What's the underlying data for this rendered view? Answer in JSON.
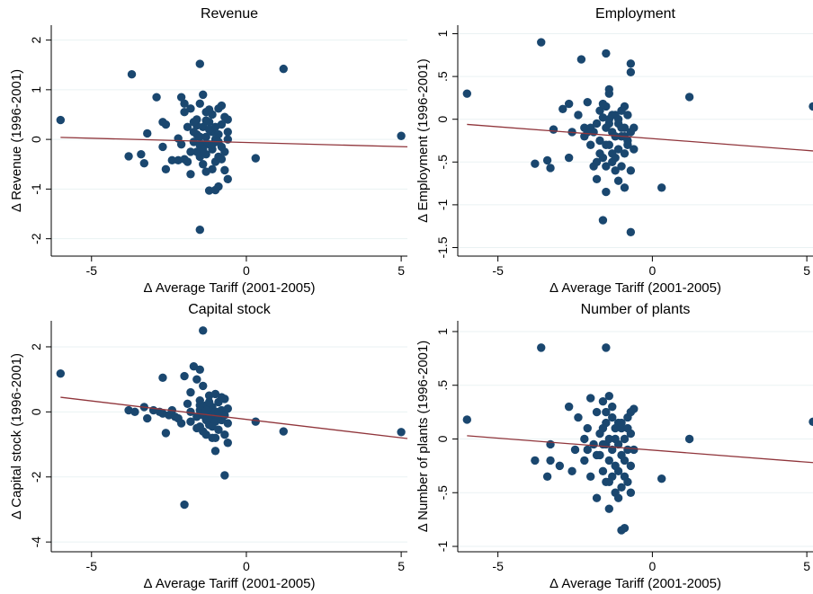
{
  "figure": {
    "marker_color": "#1a476f",
    "fit_color": "#90353b",
    "grid_color": "#eaf2f3",
    "axis_color": "#000000"
  },
  "chart_data": [
    {
      "type": "scatter",
      "title": "Revenue",
      "xlabel": "Δ Average Tariff (2001-2005)",
      "ylabel": "Δ Revenue (1996-2001)",
      "xlim": [
        -6.3,
        5.2
      ],
      "ylim": [
        -2.35,
        2.3
      ],
      "xticks": [
        -5,
        0,
        5
      ],
      "yticks": [
        -2,
        -1,
        0,
        1,
        2
      ],
      "xtick_labels": [
        "-5",
        "0",
        "5"
      ],
      "ytick_labels": [
        "-2",
        "-1",
        "0",
        "1",
        "2"
      ],
      "grid": true,
      "fit_line": {
        "x": [
          -6.0,
          5.2
        ],
        "y": [
          0.04,
          -0.15
        ]
      },
      "points": [
        [
          -6.0,
          0.39
        ],
        [
          -3.7,
          1.31
        ],
        [
          -3.2,
          0.12
        ],
        [
          -3.4,
          -0.3
        ],
        [
          -3.3,
          -0.48
        ],
        [
          -3.8,
          -0.34
        ],
        [
          -2.9,
          0.85
        ],
        [
          -2.7,
          0.35
        ],
        [
          -2.6,
          0.3
        ],
        [
          -2.7,
          -0.15
        ],
        [
          -2.6,
          -0.6
        ],
        [
          -2.4,
          -0.42
        ],
        [
          -2.2,
          -0.42
        ],
        [
          -2.1,
          0.85
        ],
        [
          -2.2,
          0.02
        ],
        [
          -2.0,
          0.72
        ],
        [
          -2.0,
          0.55
        ],
        [
          -1.9,
          0.25
        ],
        [
          -2.1,
          -0.1
        ],
        [
          -2.0,
          -0.4
        ],
        [
          -1.8,
          0.62
        ],
        [
          -1.7,
          0.15
        ],
        [
          -1.7,
          -0.05
        ],
        [
          -1.8,
          -0.7
        ],
        [
          -1.6,
          0.4
        ],
        [
          -1.6,
          0.1
        ],
        [
          -1.6,
          -0.25
        ],
        [
          -1.5,
          1.52
        ],
        [
          -1.5,
          0.72
        ],
        [
          -1.5,
          0.05
        ],
        [
          -1.5,
          -0.35
        ],
        [
          -1.4,
          0.9
        ],
        [
          -1.4,
          0.25
        ],
        [
          -1.4,
          -0.1
        ],
        [
          -1.4,
          -0.5
        ],
        [
          -1.3,
          0.55
        ],
        [
          -1.3,
          0.05
        ],
        [
          -1.3,
          -0.3
        ],
        [
          -1.2,
          0.35
        ],
        [
          -1.2,
          -0.1
        ],
        [
          -1.2,
          -1.03
        ],
        [
          -1.1,
          0.5
        ],
        [
          -1.1,
          0.15
        ],
        [
          -1.1,
          -0.2
        ],
        [
          -1.1,
          -0.6
        ],
        [
          -1.0,
          0.25
        ],
        [
          -1.0,
          -0.05
        ],
        [
          -1.0,
          -0.45
        ],
        [
          -1.0,
          -1.02
        ],
        [
          -0.9,
          0.62
        ],
        [
          -0.9,
          0.1
        ],
        [
          -0.9,
          -0.35
        ],
        [
          -0.9,
          -0.95
        ],
        [
          -0.8,
          0.68
        ],
        [
          -0.8,
          0.3
        ],
        [
          -0.8,
          -0.15
        ],
        [
          -0.7,
          0.45
        ],
        [
          -0.7,
          -0.25
        ],
        [
          -0.7,
          -0.62
        ],
        [
          -0.6,
          0.4
        ],
        [
          -0.6,
          0.15
        ],
        [
          -0.6,
          0.0
        ],
        [
          -0.6,
          -0.8
        ],
        [
          -1.2,
          0.6
        ],
        [
          -1.3,
          0.38
        ],
        [
          -1.6,
          0.28
        ],
        [
          -1.5,
          -0.12
        ],
        [
          -1.7,
          0.35
        ],
        [
          -1.8,
          -0.25
        ],
        [
          -1.9,
          -0.45
        ],
        [
          -1.3,
          -0.65
        ],
        [
          -1.1,
          -0.1
        ],
        [
          -0.8,
          -0.4
        ],
        [
          -1.5,
          -1.82
        ],
        [
          0.3,
          -0.38
        ],
        [
          1.2,
          1.42
        ],
        [
          5.0,
          0.07
        ],
        [
          -1.4,
          -0.2
        ],
        [
          -1.0,
          0.0
        ],
        [
          -1.2,
          0.2
        ],
        [
          -0.9,
          -0.05
        ]
      ]
    },
    {
      "type": "scatter",
      "title": "Employment",
      "xlabel": "Δ Average Tariff (2001-2005)",
      "ylabel": "Δ Employment (1996-2001)",
      "xlim": [
        -6.3,
        5.2
      ],
      "ylim": [
        -1.6,
        1.1
      ],
      "xticks": [
        -5,
        0,
        5
      ],
      "yticks": [
        -1.5,
        -1,
        -0.5,
        0,
        0.5,
        1
      ],
      "xtick_labels": [
        "-5",
        "0",
        "5"
      ],
      "ytick_labels": [
        "-1.5",
        "-1",
        "-.5",
        "0",
        ".5",
        "1"
      ],
      "grid": true,
      "fit_line": {
        "x": [
          -6.0,
          5.2
        ],
        "y": [
          -0.06,
          -0.37
        ]
      },
      "points": [
        [
          -6.0,
          0.3
        ],
        [
          -3.6,
          0.9
        ],
        [
          -3.8,
          -0.52
        ],
        [
          -3.4,
          -0.48
        ],
        [
          -3.3,
          -0.57
        ],
        [
          -3.2,
          -0.12
        ],
        [
          -2.9,
          0.12
        ],
        [
          -2.7,
          0.18
        ],
        [
          -2.6,
          -0.15
        ],
        [
          -2.7,
          -0.45
        ],
        [
          -2.4,
          0.05
        ],
        [
          -2.3,
          0.7
        ],
        [
          -2.2,
          -0.2
        ],
        [
          -2.1,
          0.2
        ],
        [
          -2.0,
          -0.1
        ],
        [
          -2.0,
          -0.3
        ],
        [
          -1.9,
          -0.15
        ],
        [
          -1.8,
          -0.5
        ],
        [
          -1.8,
          -0.7
        ],
        [
          -1.7,
          0.1
        ],
        [
          -1.7,
          -0.25
        ],
        [
          -1.6,
          0.02
        ],
        [
          -1.6,
          -0.45
        ],
        [
          -1.5,
          0.77
        ],
        [
          -1.5,
          0.15
        ],
        [
          -1.5,
          -0.1
        ],
        [
          -1.5,
          -0.55
        ],
        [
          -1.5,
          -0.85
        ],
        [
          -1.4,
          0.35
        ],
        [
          -1.4,
          0.0
        ],
        [
          -1.4,
          -0.3
        ],
        [
          -1.3,
          -0.15
        ],
        [
          -1.3,
          -0.5
        ],
        [
          -1.2,
          0.05
        ],
        [
          -1.2,
          -0.2
        ],
        [
          -1.2,
          -0.6
        ],
        [
          -1.1,
          -0.05
        ],
        [
          -1.1,
          -0.35
        ],
        [
          -1.1,
          -0.72
        ],
        [
          -1.0,
          0.1
        ],
        [
          -1.0,
          -0.2
        ],
        [
          -1.0,
          -0.55
        ],
        [
          -0.9,
          0.15
        ],
        [
          -0.9,
          -0.1
        ],
        [
          -0.9,
          -0.4
        ],
        [
          -0.9,
          -0.8
        ],
        [
          -0.8,
          0.05
        ],
        [
          -0.8,
          -0.25
        ],
        [
          -0.7,
          0.65
        ],
        [
          -0.7,
          0.55
        ],
        [
          -0.7,
          -0.15
        ],
        [
          -0.7,
          -0.6
        ],
        [
          -0.6,
          -0.1
        ],
        [
          -0.6,
          -0.35
        ],
        [
          -1.4,
          0.3
        ],
        [
          -1.6,
          0.18
        ],
        [
          -1.3,
          -0.4
        ],
        [
          -1.8,
          -0.05
        ],
        [
          -2.1,
          -0.15
        ],
        [
          -1.9,
          -0.55
        ],
        [
          -1.1,
          0.0
        ],
        [
          -0.8,
          -0.3
        ],
        [
          -1.2,
          -0.45
        ],
        [
          -1.5,
          -0.3
        ],
        [
          -1.6,
          -1.18
        ],
        [
          -0.7,
          -1.32
        ],
        [
          0.3,
          -0.8
        ],
        [
          1.2,
          0.26
        ],
        [
          5.2,
          0.15
        ],
        [
          -1.4,
          -0.05
        ],
        [
          -1.0,
          -0.1
        ],
        [
          -1.3,
          0.05
        ],
        [
          -0.9,
          -0.2
        ],
        [
          -1.7,
          -0.4
        ],
        [
          -2.2,
          -0.1
        ]
      ]
    },
    {
      "type": "scatter",
      "title": "Capital stock",
      "xlabel": "Δ Average Tariff (2001-2005)",
      "ylabel": "Δ Capital stock (1996-2001)",
      "xlim": [
        -6.3,
        5.2
      ],
      "ylim": [
        -4.3,
        2.8
      ],
      "xticks": [
        -5,
        0,
        5
      ],
      "yticks": [
        -4,
        -2,
        0,
        2
      ],
      "xtick_labels": [
        "-5",
        "0",
        "5"
      ],
      "ytick_labels": [
        "-4",
        "-2",
        "0",
        "2"
      ],
      "grid": true,
      "fit_line": {
        "x": [
          -6.0,
          5.2
        ],
        "y": [
          0.45,
          -0.82
        ]
      },
      "points": [
        [
          -6.0,
          1.18
        ],
        [
          -3.8,
          0.05
        ],
        [
          -3.6,
          0.0
        ],
        [
          -3.3,
          0.15
        ],
        [
          -3.2,
          -0.2
        ],
        [
          -3.0,
          0.05
        ],
        [
          -2.7,
          -0.05
        ],
        [
          -2.6,
          -0.65
        ],
        [
          -2.5,
          -0.1
        ],
        [
          -2.4,
          0.05
        ],
        [
          -2.2,
          -0.2
        ],
        [
          -2.1,
          -0.35
        ],
        [
          -2.0,
          1.1
        ],
        [
          -2.0,
          -2.85
        ],
        [
          -1.9,
          0.25
        ],
        [
          -1.8,
          0.0
        ],
        [
          -1.8,
          -0.3
        ],
        [
          -1.7,
          1.4
        ],
        [
          -1.6,
          1.0
        ],
        [
          -1.6,
          -0.15
        ],
        [
          -1.5,
          1.3
        ],
        [
          -1.5,
          0.35
        ],
        [
          -1.5,
          0.05
        ],
        [
          -1.5,
          -0.45
        ],
        [
          -1.4,
          2.5
        ],
        [
          -1.4,
          0.8
        ],
        [
          -1.4,
          -0.1
        ],
        [
          -1.3,
          0.2
        ],
        [
          -1.3,
          -0.25
        ],
        [
          -1.3,
          -0.7
        ],
        [
          -1.2,
          0.5
        ],
        [
          -1.2,
          -0.05
        ],
        [
          -1.2,
          -0.4
        ],
        [
          -1.1,
          0.15
        ],
        [
          -1.1,
          -0.2
        ],
        [
          -1.1,
          -0.8
        ],
        [
          -1.0,
          0.55
        ],
        [
          -1.0,
          0.0
        ],
        [
          -1.0,
          -0.3
        ],
        [
          -1.0,
          -1.2
        ],
        [
          -0.9,
          0.3
        ],
        [
          -0.9,
          -0.15
        ],
        [
          -0.9,
          -0.55
        ],
        [
          -0.8,
          0.45
        ],
        [
          -0.8,
          0.05
        ],
        [
          -0.8,
          -0.25
        ],
        [
          -0.7,
          0.4
        ],
        [
          -0.7,
          -0.1
        ],
        [
          -0.7,
          -0.7
        ],
        [
          -0.7,
          -1.95
        ],
        [
          -0.6,
          0.1
        ],
        [
          -0.6,
          -0.35
        ],
        [
          -0.6,
          -0.95
        ],
        [
          -1.6,
          -0.5
        ],
        [
          -1.8,
          0.6
        ],
        [
          -2.3,
          -0.15
        ],
        [
          -2.8,
          0.0
        ],
        [
          -1.3,
          0.05
        ],
        [
          -1.1,
          -0.45
        ],
        [
          -1.5,
          0.2
        ],
        [
          -0.9,
          0.0
        ],
        [
          -1.2,
          0.3
        ],
        [
          0.3,
          -0.3
        ],
        [
          1.2,
          -0.6
        ],
        [
          5.0,
          -0.62
        ],
        [
          -2.7,
          1.05
        ],
        [
          -1.4,
          -0.6
        ],
        [
          -1.0,
          -0.8
        ]
      ]
    },
    {
      "type": "scatter",
      "title": "Number of plants",
      "xlabel": "Δ Average Tariff (2001-2005)",
      "ylabel": "Δ Number of plants (1996-2001)",
      "xlim": [
        -6.3,
        5.2
      ],
      "ylim": [
        -1.05,
        1.1
      ],
      "xticks": [
        -5,
        0,
        5
      ],
      "yticks": [
        -1,
        -0.5,
        0,
        0.5,
        1
      ],
      "xtick_labels": [
        "-5",
        "0",
        "5"
      ],
      "ytick_labels": [
        "-1",
        "-.5",
        "0",
        ".5",
        "1"
      ],
      "grid": true,
      "fit_line": {
        "x": [
          -6.0,
          5.2
        ],
        "y": [
          0.03,
          -0.22
        ]
      },
      "points": [
        [
          -6.0,
          0.18
        ],
        [
          -3.6,
          0.85
        ],
        [
          -3.8,
          -0.2
        ],
        [
          -3.4,
          -0.35
        ],
        [
          -3.3,
          -0.05
        ],
        [
          -3.3,
          -0.2
        ],
        [
          -3.0,
          -0.25
        ],
        [
          -2.7,
          0.3
        ],
        [
          -2.6,
          -0.3
        ],
        [
          -2.5,
          -0.1
        ],
        [
          -2.4,
          0.2
        ],
        [
          -2.2,
          0.0
        ],
        [
          -2.2,
          -0.2
        ],
        [
          -2.1,
          0.1
        ],
        [
          -2.0,
          0.38
        ],
        [
          -2.0,
          -0.35
        ],
        [
          -1.9,
          -0.05
        ],
        [
          -1.8,
          0.25
        ],
        [
          -1.8,
          -0.55
        ],
        [
          -1.7,
          0.05
        ],
        [
          -1.7,
          -0.15
        ],
        [
          -1.6,
          0.35
        ],
        [
          -1.6,
          0.1
        ],
        [
          -1.6,
          -0.3
        ],
        [
          -1.5,
          0.85
        ],
        [
          -1.5,
          0.15
        ],
        [
          -1.5,
          -0.05
        ],
        [
          -1.5,
          -0.4
        ],
        [
          -1.4,
          0.4
        ],
        [
          -1.4,
          0.0
        ],
        [
          -1.4,
          -0.2
        ],
        [
          -1.4,
          -0.65
        ],
        [
          -1.3,
          0.2
        ],
        [
          -1.3,
          -0.1
        ],
        [
          -1.3,
          -0.35
        ],
        [
          -1.2,
          0.1
        ],
        [
          -1.2,
          -0.25
        ],
        [
          -1.2,
          -0.5
        ],
        [
          -1.1,
          0.15
        ],
        [
          -1.1,
          -0.05
        ],
        [
          -1.1,
          -0.3
        ],
        [
          -1.0,
          0.1
        ],
        [
          -1.0,
          -0.15
        ],
        [
          -1.0,
          -0.45
        ],
        [
          -1.0,
          -0.85
        ],
        [
          -0.9,
          0.0
        ],
        [
          -0.9,
          -0.35
        ],
        [
          -0.9,
          -0.83
        ],
        [
          -0.8,
          0.2
        ],
        [
          -0.8,
          -0.1
        ],
        [
          -0.8,
          -0.4
        ],
        [
          -0.7,
          0.25
        ],
        [
          -0.7,
          0.05
        ],
        [
          -0.7,
          -0.25
        ],
        [
          -0.7,
          -0.5
        ],
        [
          -0.6,
          0.28
        ],
        [
          -0.6,
          -0.1
        ],
        [
          -1.5,
          0.25
        ],
        [
          -1.3,
          0.3
        ],
        [
          -1.8,
          -0.15
        ],
        [
          -1.1,
          -0.55
        ],
        [
          -1.6,
          -0.05
        ],
        [
          -1.2,
          0.0
        ],
        [
          -0.9,
          -0.2
        ],
        [
          -1.4,
          -0.4
        ],
        [
          0.3,
          -0.37
        ],
        [
          1.2,
          0.0
        ],
        [
          5.2,
          0.16
        ],
        [
          -1.0,
          0.15
        ],
        [
          -0.8,
          0.1
        ],
        [
          -2.1,
          -0.1
        ]
      ]
    }
  ]
}
